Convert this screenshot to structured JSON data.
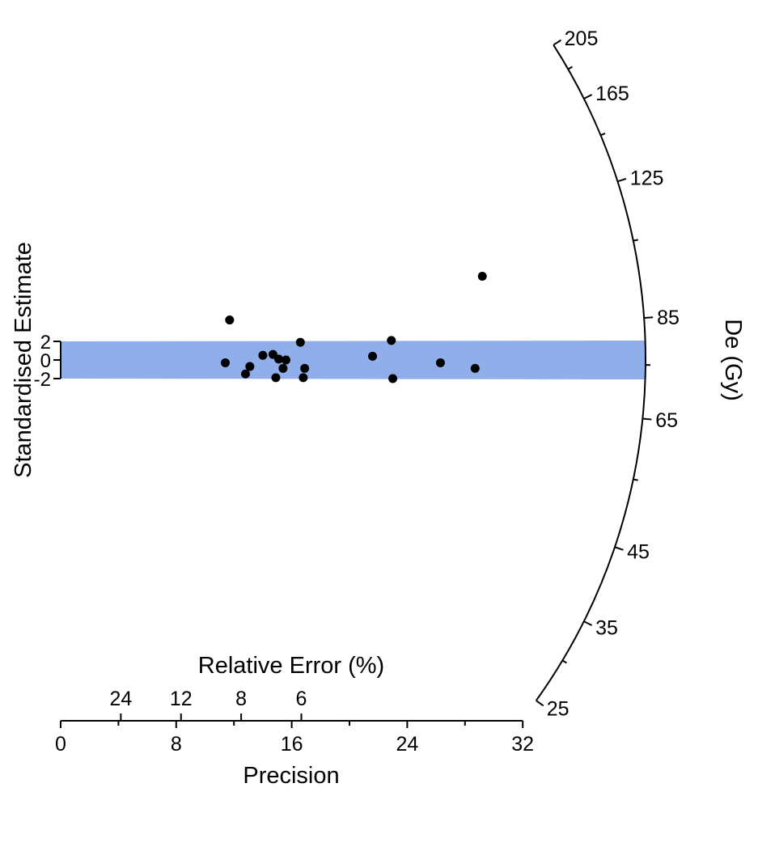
{
  "chart_data": {
    "type": "scatter",
    "subtype": "radial-plot",
    "title": "",
    "ylabel": "Standardised Estimate",
    "xlabel": "Precision",
    "x2label": "Relative Error (%)",
    "zlabel": "De (Gy)",
    "y_ticks": [
      "2",
      "0",
      "-2"
    ],
    "y_tick_values": [
      2,
      0,
      -2
    ],
    "x_ticks": [
      "0",
      "8",
      "16",
      "24",
      "32"
    ],
    "x_tick_values": [
      0,
      8,
      16,
      24,
      32
    ],
    "xlim": [
      0,
      32
    ],
    "x2_ticks": [
      "24",
      "12",
      "8",
      "6"
    ],
    "x2_tick_values": [
      24,
      12,
      8,
      6
    ],
    "z_ticks": [
      "205",
      "165",
      "125",
      "85",
      "65",
      "45",
      "35",
      "25"
    ],
    "z_tick_values": [
      205,
      165,
      125,
      85,
      65,
      45,
      35,
      25
    ],
    "zlim": [
      25,
      205
    ],
    "central_value_gy": 76,
    "band": {
      "lower": -2,
      "upper": 2,
      "color": "#8faeea"
    },
    "point_color": "#000000",
    "points": [
      {
        "precision": 11.4,
        "z": -0.3
      },
      {
        "precision": 11.7,
        "z": 4.3
      },
      {
        "precision": 12.8,
        "z": -1.5
      },
      {
        "precision": 13.1,
        "z": -0.7
      },
      {
        "precision": 14.0,
        "z": 0.5
      },
      {
        "precision": 14.7,
        "z": 0.6
      },
      {
        "precision": 14.9,
        "z": -1.9
      },
      {
        "precision": 15.1,
        "z": 0.1
      },
      {
        "precision": 15.4,
        "z": -0.9
      },
      {
        "precision": 15.6,
        "z": 0.0
      },
      {
        "precision": 16.6,
        "z": 1.9
      },
      {
        "precision": 16.8,
        "z": -1.9
      },
      {
        "precision": 16.9,
        "z": -0.9
      },
      {
        "precision": 21.6,
        "z": 0.4
      },
      {
        "precision": 22.9,
        "z": 2.1
      },
      {
        "precision": 23.0,
        "z": -2.0
      },
      {
        "precision": 26.3,
        "z": -0.3
      },
      {
        "precision": 28.7,
        "z": -0.9
      },
      {
        "precision": 29.2,
        "z": 9.0
      }
    ]
  }
}
